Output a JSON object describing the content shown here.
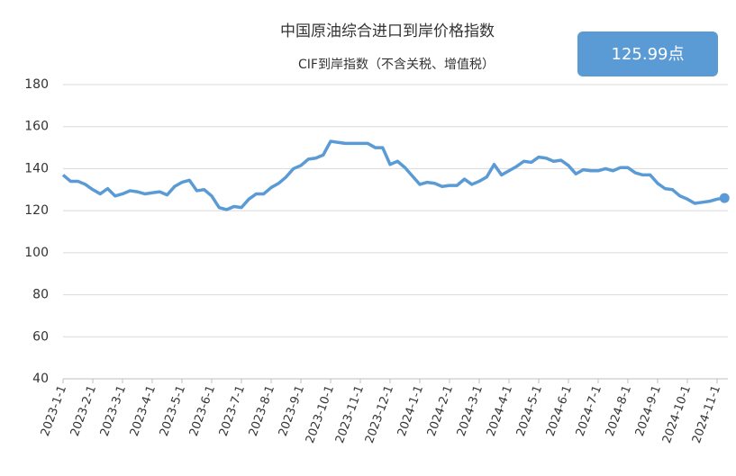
{
  "chart_data": {
    "type": "line",
    "title": "中国原油综合进口到岸价格指数",
    "subtitle": "CIF到岸指数（不含关税、增值税）",
    "annotation": "125.99点",
    "categories": [
      "2023-1-1",
      null,
      null,
      null,
      "2023-2-1",
      null,
      null,
      null,
      "2023-3-1",
      null,
      null,
      null,
      "2023-4-1",
      null,
      null,
      null,
      "2023-5-1",
      null,
      null,
      null,
      "2023-6-1",
      null,
      null,
      null,
      "2023-7-1",
      null,
      null,
      null,
      "2023-8-1",
      null,
      null,
      null,
      "2023-9-1",
      null,
      null,
      null,
      "2023-10-1",
      null,
      null,
      null,
      "2023-11-1",
      null,
      null,
      null,
      "2023-12-1",
      null,
      null,
      null,
      "2024-1-1",
      null,
      null,
      null,
      "2024-2-1",
      null,
      null,
      null,
      "2024-3-1",
      null,
      null,
      null,
      "2024-4-1",
      null,
      null,
      null,
      "2024-5-1",
      null,
      null,
      null,
      "2024-6-1",
      null,
      null,
      null,
      "2024-7-1",
      null,
      null,
      null,
      "2024-8-1",
      null,
      null,
      null,
      "2024-9-1",
      null,
      null,
      null,
      "2024-10-1",
      null,
      null,
      null,
      "2024-11-1",
      null
    ],
    "series": [
      {
        "name": "CIF到岸指数",
        "color": "#5b9bd5",
        "values": [
          137,
          134,
          134,
          132.5,
          130,
          128,
          130.5,
          127,
          128,
          129.5,
          129,
          128,
          128.5,
          129,
          127.5,
          131.5,
          133.5,
          134.5,
          129.5,
          130,
          127,
          121.5,
          120.5,
          122,
          121.5,
          125.5,
          128,
          128,
          131,
          133,
          136,
          140,
          141.5,
          144.5,
          145,
          146.5,
          153,
          152.5,
          152,
          152,
          152,
          152,
          150,
          150,
          142,
          143.5,
          140.5,
          136.5,
          132.5,
          133.5,
          133,
          131.5,
          132,
          132,
          135,
          132.5,
          134,
          136,
          142,
          137,
          139,
          141,
          143.5,
          143,
          145.5,
          145,
          143.5,
          144,
          141.5,
          137.5,
          139.5,
          139,
          139,
          140,
          139,
          140.5,
          140.5,
          138,
          137,
          137,
          133,
          130.5,
          130,
          127,
          125.5,
          123.5,
          124,
          124.5,
          125.5,
          125.99
        ]
      }
    ],
    "ylim": [
      40,
      180
    ],
    "yticks": [
      40,
      60,
      80,
      100,
      120,
      140,
      160,
      180
    ],
    "grid": true
  }
}
